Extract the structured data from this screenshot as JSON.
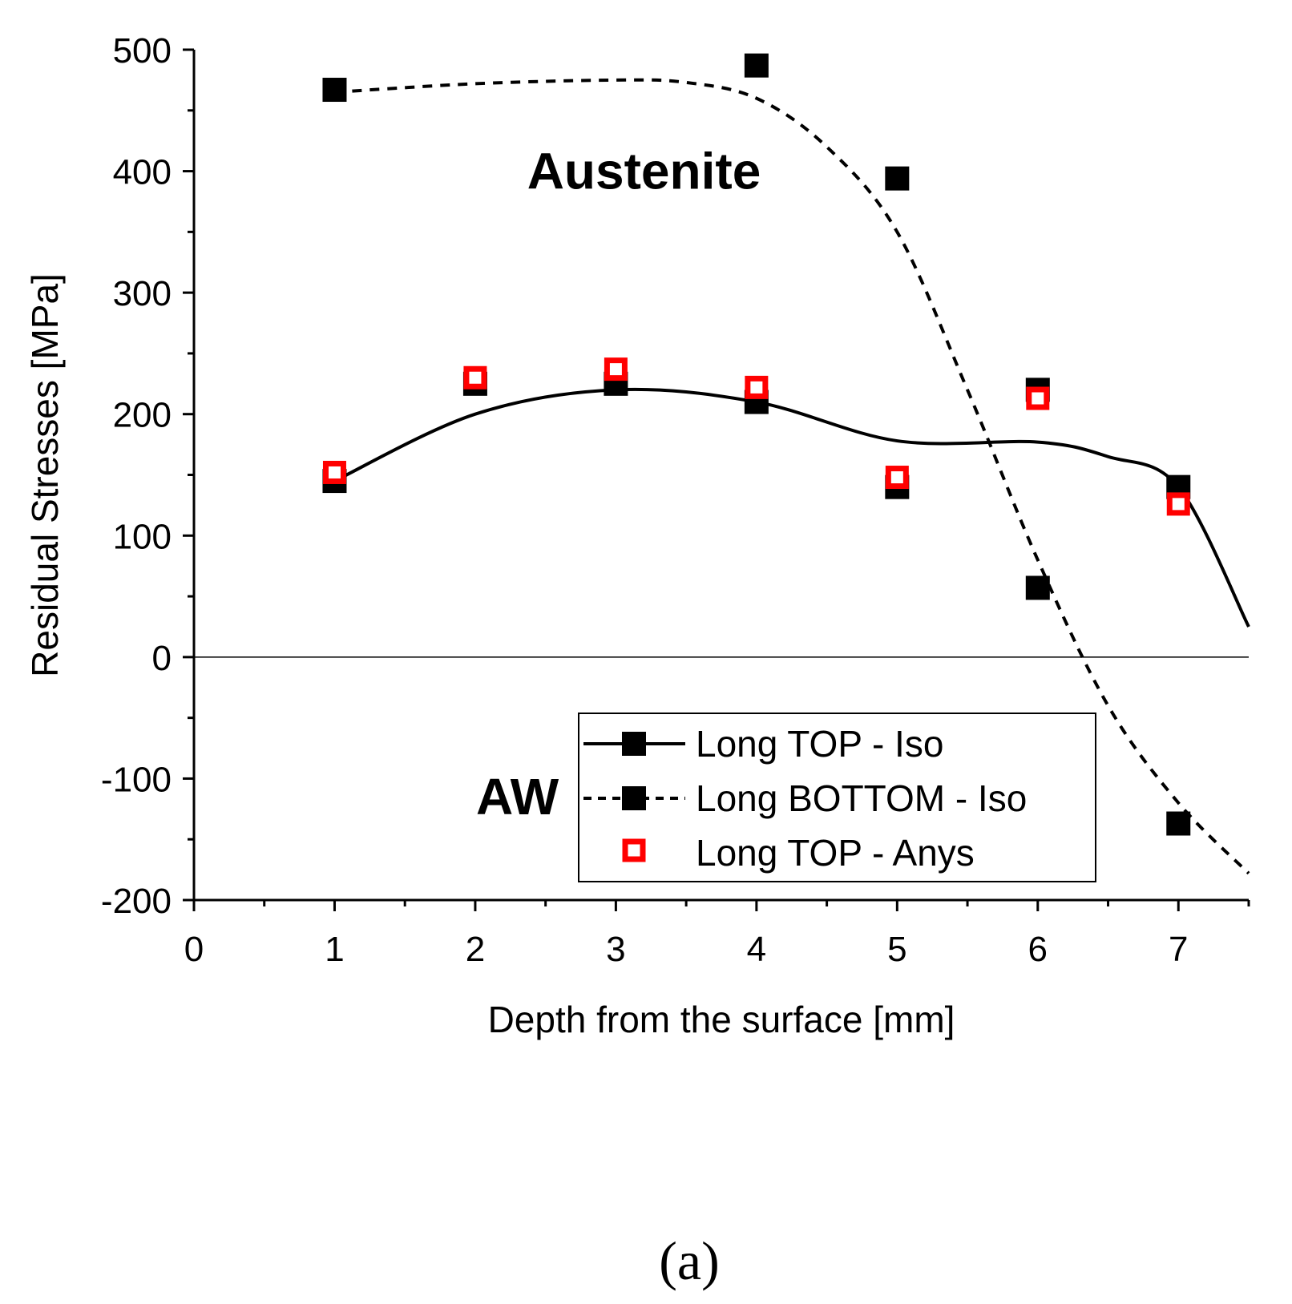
{
  "chart_data": {
    "type": "scatter",
    "xlabel": "Depth from the surface [mm]",
    "ylabel": "Residual Stresses [MPa]",
    "xlim": [
      0,
      7.5
    ],
    "ylim": [
      -200,
      500
    ],
    "x_ticks": [
      0,
      1,
      2,
      3,
      4,
      5,
      6,
      7
    ],
    "y_ticks": [
      -200,
      -100,
      0,
      100,
      200,
      300,
      400,
      500
    ],
    "x_tick_labels": [
      "0",
      "1",
      "2",
      "3",
      "4",
      "5",
      "6",
      "7"
    ],
    "y_tick_labels": [
      "-200",
      "-100",
      "0",
      "100",
      "200",
      "300",
      "400",
      "500"
    ],
    "grid": false,
    "zero_line": true,
    "legend_position": "bottom-center",
    "series": [
      {
        "name": "Long TOP - Iso",
        "marker": "filled-square",
        "line": "solid",
        "color": "#000000",
        "x": [
          1,
          2,
          3,
          4,
          5,
          6,
          7
        ],
        "y": [
          145,
          225,
          225,
          210,
          140,
          220,
          140
        ],
        "fit_x": [
          1,
          2,
          3,
          4,
          5,
          6,
          6.5,
          7,
          7.5
        ],
        "fit_y": [
          145,
          200,
          220,
          210,
          178,
          177,
          165,
          140,
          25
        ]
      },
      {
        "name": "Long BOTTOM - Iso",
        "marker": "filled-square",
        "line": "dashed",
        "color": "#000000",
        "x": [
          1,
          4,
          5,
          6,
          7
        ],
        "y": [
          467,
          487,
          394,
          57,
          -137
        ],
        "fit_x": [
          1,
          2,
          3,
          3.5,
          4,
          4.5,
          5,
          5.5,
          6,
          6.5,
          7,
          7.5
        ],
        "fit_y": [
          465,
          472,
          475,
          473,
          460,
          420,
          350,
          220,
          80,
          -40,
          -120,
          -178
        ]
      },
      {
        "name": "Long TOP - Anys",
        "marker": "open-square",
        "line": "none",
        "color": "#ff0000",
        "x": [
          1,
          2,
          3,
          4,
          5,
          6,
          7
        ],
        "y": [
          152,
          230,
          237,
          222,
          148,
          213,
          126
        ]
      }
    ],
    "annotations": [
      {
        "text": "Austenite",
        "x": 3.2,
        "y": 400
      },
      {
        "text": "AW",
        "x": 2.3,
        "y": -115
      }
    ]
  },
  "caption": "(a)"
}
